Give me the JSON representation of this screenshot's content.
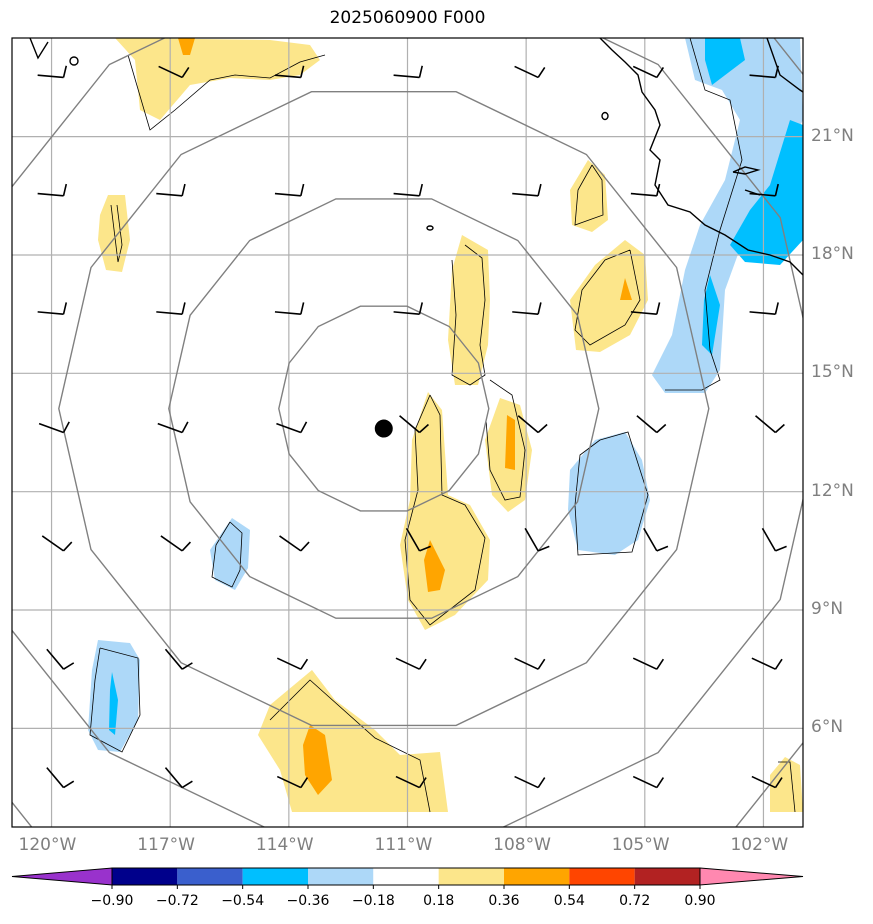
{
  "title": "2025060900 F000",
  "map": {
    "lon_range": [
      -121.0,
      -101.0
    ],
    "lat_range": [
      3.5,
      23.5
    ],
    "lat_ticks": [
      {
        "value": 21,
        "label": "21°N"
      },
      {
        "value": 18,
        "label": "18°N"
      },
      {
        "value": 15,
        "label": "15°N"
      },
      {
        "value": 12,
        "label": "12°N"
      },
      {
        "value": 9,
        "label": "9°N"
      },
      {
        "value": 6,
        "label": "6°N"
      }
    ],
    "lon_ticks": [
      {
        "value": -120,
        "label": "120°W"
      },
      {
        "value": -117,
        "label": "117°W"
      },
      {
        "value": -114,
        "label": "114°W"
      },
      {
        "value": -111,
        "label": "111°W"
      },
      {
        "value": -108,
        "label": "108°W"
      },
      {
        "value": -105,
        "label": "105°W"
      },
      {
        "value": -102,
        "label": "102°W"
      }
    ],
    "storm_center": {
      "lon": -111.6,
      "lat": 13.6
    },
    "grid_color": "#b0b0b0",
    "ring_color": "#808080",
    "coast_color": "#000000"
  },
  "colorbar": {
    "levels": [
      "−0.90",
      "−0.72",
      "−0.54",
      "−0.36",
      "−0.18",
      "0.18",
      "0.36",
      "0.54",
      "0.72",
      "0.90"
    ],
    "colors": [
      "#9932cc",
      "#00008b",
      "#3a5fcd",
      "#00bfff",
      "#add8f8",
      "#ffffff",
      "#fce68b",
      "#ffa500",
      "#ff4500",
      "#b22222",
      "#ff88b0"
    ]
  }
}
